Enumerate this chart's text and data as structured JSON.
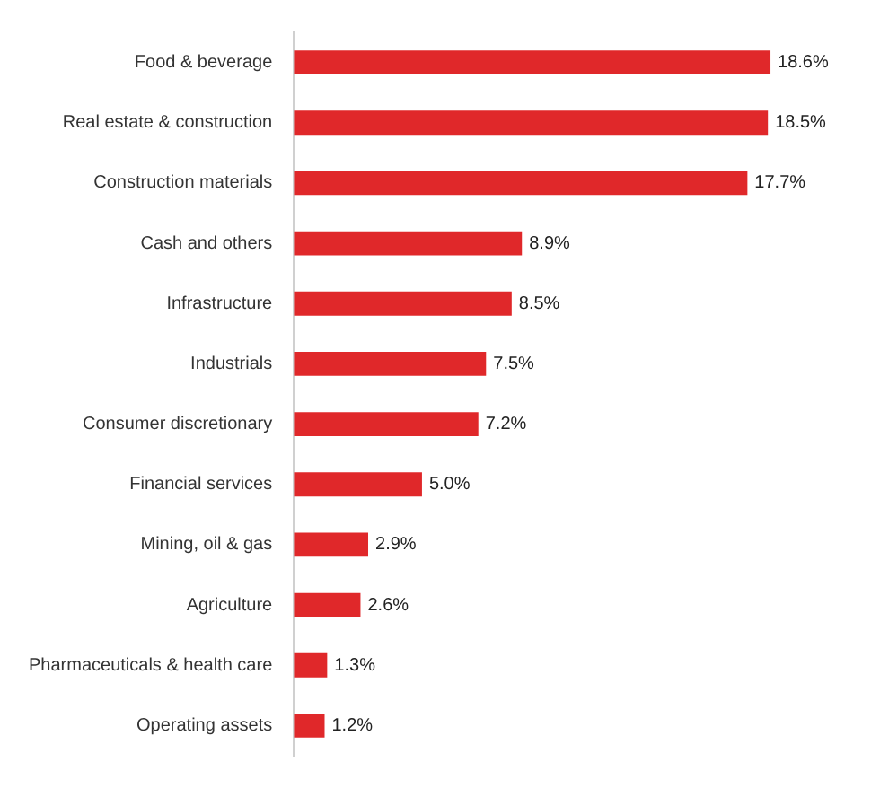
{
  "chart_data": {
    "type": "bar",
    "orientation": "horizontal",
    "categories": [
      "Food & beverage",
      "Real estate & construction",
      "Construction materials",
      "Cash and others",
      "Infrastructure",
      "Industrials",
      "Consumer discretionary",
      "Financial services",
      "Mining, oil & gas",
      "Agriculture",
      "Pharmaceuticals & health care",
      "Operating assets"
    ],
    "values": [
      18.6,
      18.5,
      17.7,
      8.9,
      8.5,
      7.5,
      7.2,
      5.0,
      2.9,
      2.6,
      1.3,
      1.2
    ],
    "value_labels": [
      "18.6%",
      "18.5%",
      "17.7%",
      "8.9%",
      "8.5%",
      "7.5%",
      "7.2%",
      "5.0%",
      "2.9%",
      "2.6%",
      "1.3%",
      "1.2%"
    ],
    "color": "#e0282a",
    "grid": false,
    "legend": false
  }
}
